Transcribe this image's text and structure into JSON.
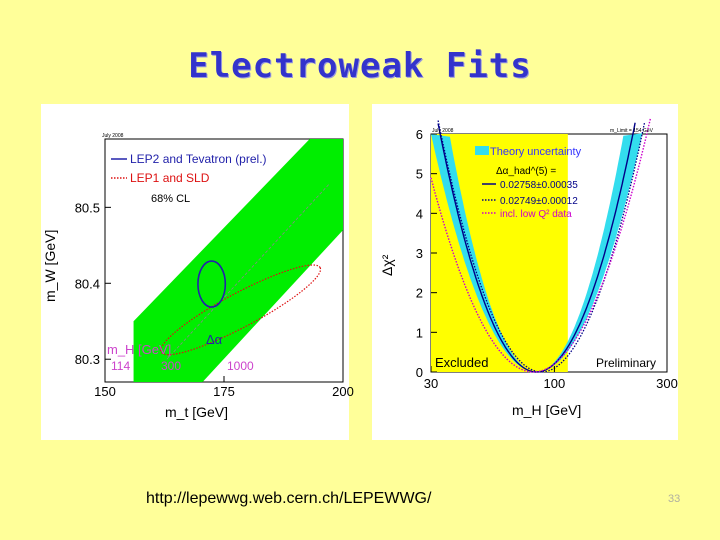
{
  "slide": {
    "title": "Electroweak Fits",
    "url": "http://lepewwg.web.cern.ch/LEPEWWG/",
    "page_number": "33"
  },
  "chart_data": [
    {
      "type": "scatter",
      "date_label": "July 2008",
      "xlabel": "m_t [GeV]",
      "ylabel": "m_W [GeV]",
      "xlim": [
        150,
        200
      ],
      "ylim": [
        80.27,
        80.59
      ],
      "x_ticks": [
        "150",
        "175",
        "200"
      ],
      "y_ticks": [
        "80.3",
        "80.4",
        "80.5"
      ],
      "legend": {
        "placement": "top-left",
        "entries": [
          {
            "label": "LEP2 and Tevatron (prel.)",
            "color": "#2222aa",
            "style": "solid"
          },
          {
            "label": "LEP1 and SLD",
            "color": "#dd1111",
            "style": "dotted"
          }
        ],
        "cl_label": "68% CL"
      },
      "contours": [
        {
          "name": "LEP2 and Tevatron (prel.)",
          "center": [
            172.4,
            80.399
          ],
          "half_width_x": 1.2,
          "half_width_y": 0.025,
          "color": "#2222aa"
        },
        {
          "name": "LEP1 and SLD",
          "center": [
            178.5,
            80.365
          ],
          "half_width_x": 18,
          "half_width_y": 0.03,
          "angle_deg": -28,
          "color": "#dd1111"
        }
      ],
      "higgs_band": {
        "label": "m_H [GeV]",
        "color": "#00ee00",
        "mass_labels": [
          "114",
          "300",
          "1000"
        ],
        "symbol": "Δα"
      }
    },
    {
      "type": "line",
      "date_label": "July 2008",
      "corner_label": "m_Limit = 154 GeV",
      "xlabel": "m_H [GeV]",
      "ylabel": "Δχ²",
      "xscale": "log",
      "xlim": [
        30,
        300
      ],
      "ylim": [
        0,
        6
      ],
      "x_ticks": [
        30,
        100,
        300
      ],
      "y_ticks": [
        0,
        1,
        2,
        3,
        4,
        5,
        6
      ],
      "legend": {
        "placement": "top-right",
        "band_label": "Theory uncertainty",
        "delta_alpha_label": "Δα_had^(5) =",
        "entries": [
          {
            "label": "0.02758±0.00035",
            "color": "#000088",
            "style": "solid"
          },
          {
            "label": "0.02749±0.00012",
            "color": "#000088",
            "style": "dotted"
          },
          {
            "label": "incl. low Q² data",
            "color": "#cc00cc",
            "style": "dotted"
          }
        ]
      },
      "excluded": {
        "label": "Excluded",
        "range": [
          30,
          114
        ],
        "color": "#ffff00"
      },
      "preliminary_label": "Preliminary",
      "minimum_mh": 84,
      "colors": {
        "band": "#33ddee",
        "line": "#000088",
        "low_q2": "#cc00cc"
      }
    }
  ]
}
